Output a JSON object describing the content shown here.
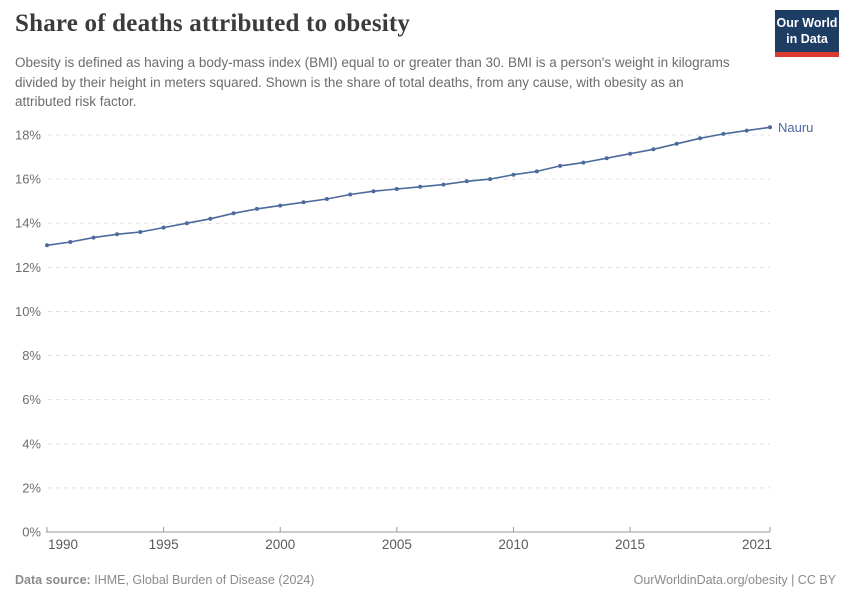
{
  "chart_data": {
    "type": "line",
    "title": "Share of deaths attributed to obesity",
    "subtitle": "Obesity is defined as having a body-mass index (BMI) equal to or greater than 30. BMI is a person's weight in kilograms divided by their height in meters squared. Shown is the share of total deaths, from any cause, with obesity as an attributed risk factor.",
    "x": [
      1990,
      1991,
      1992,
      1993,
      1994,
      1995,
      1996,
      1997,
      1998,
      1999,
      2000,
      2001,
      2002,
      2003,
      2004,
      2005,
      2006,
      2007,
      2008,
      2009,
      2010,
      2011,
      2012,
      2013,
      2014,
      2015,
      2016,
      2017,
      2018,
      2019,
      2020,
      2021
    ],
    "series": [
      {
        "name": "Nauru",
        "color": "#4c6a9c",
        "values": [
          13.0,
          13.15,
          13.35,
          13.5,
          13.6,
          13.8,
          14.0,
          14.2,
          14.45,
          14.65,
          14.8,
          14.95,
          15.1,
          15.3,
          15.45,
          15.55,
          15.65,
          15.75,
          15.9,
          16.0,
          16.2,
          16.35,
          16.6,
          16.75,
          16.95,
          17.15,
          17.35,
          17.6,
          17.85,
          18.05,
          18.2,
          18.35
        ]
      }
    ],
    "xlim": [
      1990,
      2021
    ],
    "ylim": [
      0,
      18.5
    ],
    "y_unit": "%",
    "yticks": [
      0,
      2,
      4,
      6,
      8,
      10,
      12,
      14,
      16,
      18
    ],
    "xticks": [
      1990,
      1995,
      2000,
      2005,
      2010,
      2015,
      2021
    ],
    "grid": "dashed-horizontal",
    "legend_position": "end-of-line"
  },
  "logo": {
    "line1": "Our World",
    "line2": "in Data"
  },
  "footer": {
    "source_label": "Data source:",
    "source_value": "IHME, Global Burden of Disease (2024)",
    "rights": "OurWorldinData.org/obesity | CC BY"
  },
  "colors": {
    "line": "#4c6a9c",
    "logo_navy": "#1d3d63",
    "logo_red": "#d93a2d",
    "gridline": "#e0e0e0",
    "axis": "#9a9a9a"
  }
}
